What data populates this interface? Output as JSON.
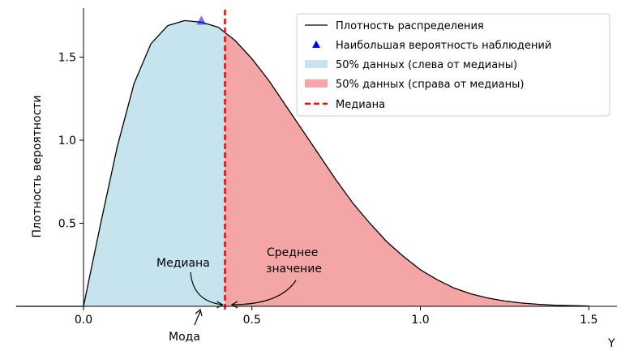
{
  "chart_data": {
    "type": "area",
    "title": "",
    "xlabel": "Y",
    "ylabel": "Плотность вероятности",
    "xlim": [
      -0.2,
      1.55
    ],
    "ylim": [
      0,
      1.8
    ],
    "x_ticks": [
      0.0,
      0.5,
      1.0,
      1.5
    ],
    "x_tick_labels": [
      "0.0",
      "0.5",
      "1.0",
      "1.5"
    ],
    "y_ticks": [
      0.5,
      1.0,
      1.5
    ],
    "y_tick_labels": [
      "0.5",
      "1.0",
      "1.5"
    ],
    "density_curve": {
      "x": [
        -0.2,
        0.0,
        0.05,
        0.1,
        0.15,
        0.2,
        0.25,
        0.3,
        0.35,
        0.4,
        0.45,
        0.5,
        0.55,
        0.6,
        0.65,
        0.7,
        0.75,
        0.8,
        0.85,
        0.9,
        0.95,
        1.0,
        1.05,
        1.1,
        1.15,
        1.2,
        1.25,
        1.3,
        1.35,
        1.4,
        1.45,
        1.5
      ],
      "y": [
        0.0,
        0.0,
        0.49,
        0.96,
        1.34,
        1.58,
        1.69,
        1.72,
        1.71,
        1.68,
        1.6,
        1.49,
        1.36,
        1.21,
        1.06,
        0.91,
        0.76,
        0.62,
        0.5,
        0.39,
        0.3,
        0.22,
        0.16,
        0.11,
        0.075,
        0.05,
        0.032,
        0.02,
        0.012,
        0.007,
        0.004,
        0.002
      ]
    },
    "mode": {
      "x": 0.35,
      "y": 1.72
    },
    "median": 0.42,
    "mean": 0.45,
    "series": [
      {
        "name": "Плотность распределения",
        "color": "#000000"
      },
      {
        "name": "Наибольшая вероятность наблюдений",
        "color": "#0000ff"
      },
      {
        "name": "50% данных (слева от медианы)",
        "color": "#add8e6"
      },
      {
        "name": "50% данных (справа от медианы)",
        "color": "#f08080"
      },
      {
        "name": "Медиана",
        "color": "#ff0000"
      }
    ],
    "legend_placement": "top-right",
    "grid": false,
    "annotations": {
      "median_label": "Медиана",
      "mean_label_line1": "Среднее",
      "mean_label_line2": "значение",
      "mode_label": "Мода"
    }
  }
}
